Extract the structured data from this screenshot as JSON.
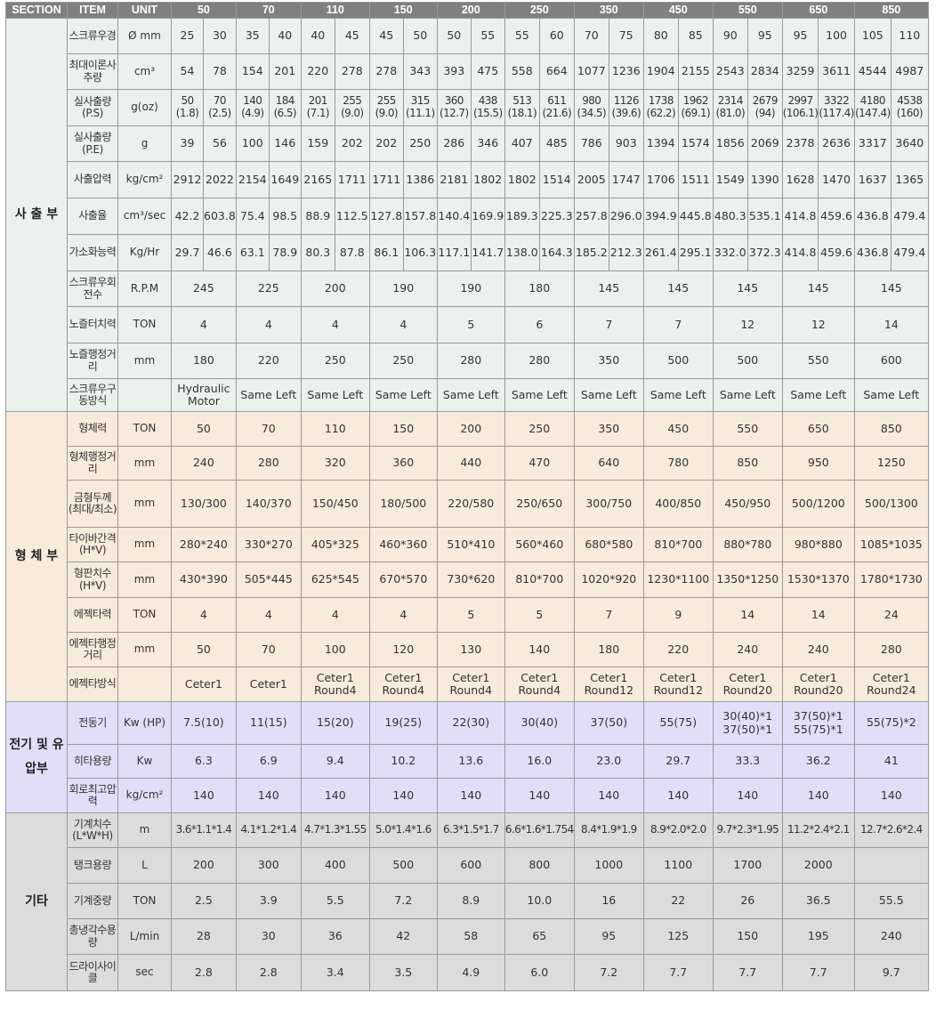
{
  "header": [
    "SECTION",
    "ITEM",
    "UNIT",
    "50",
    "70",
    "110",
    "150",
    "200",
    "250",
    "350",
    "450",
    "550",
    "650",
    "850"
  ],
  "sections": [
    {
      "name": "사 출 부",
      "rows": [
        {
          "item": "스크류우경",
          "unit": "Ø mm",
          "split": true,
          "values": [
            "25",
            "30",
            "35",
            "40",
            "40",
            "45",
            "45",
            "50",
            "50",
            "55",
            "55",
            "60",
            "70",
            "75",
            "80",
            "85",
            "90",
            "95",
            "95",
            "100",
            "105",
            "110"
          ]
        },
        {
          "item": "최대이론사추량",
          "unit": "cm³",
          "split": true,
          "values": [
            "54",
            "78",
            "154",
            "201",
            "220",
            "278",
            "278",
            "343",
            "393",
            "475",
            "558",
            "664",
            "1077",
            "1236",
            "1904",
            "2155",
            "2543",
            "2834",
            "3259",
            "3611",
            "4544",
            "4987"
          ]
        },
        {
          "item": "실사출량(P.S)",
          "unit": "g(oz)",
          "split": true,
          "small": true,
          "values": [
            "50 (1.8)",
            "70 (2.5)",
            "140 (4.9)",
            "184 (6.5)",
            "201 (7.1)",
            "255 (9.0)",
            "255 (9.0)",
            "315 (11.1)",
            "360 (12.7)",
            "438 (15.5)",
            "513 (18.1)",
            "611 (21.6)",
            "980 (34.5)",
            "1126 (39.6)",
            "1738 (62.2)",
            "1962 (69.1)",
            "2314 (81.0)",
            "2679 (94)",
            "2997 (106.1)",
            "3322 (117.4)",
            "4180 (147.4)",
            "4538 (160)"
          ]
        },
        {
          "item": "실사출량(P.E)",
          "unit": "g",
          "split": true,
          "values": [
            "39",
            "56",
            "100",
            "146",
            "159",
            "202",
            "202",
            "250",
            "286",
            "346",
            "407",
            "485",
            "786",
            "903",
            "1394",
            "1574",
            "1856",
            "2069",
            "2378",
            "2636",
            "3317",
            "3640"
          ]
        },
        {
          "item": "사출압력",
          "unit": "kg/cm²",
          "split": true,
          "values": [
            "2912",
            "2022",
            "2154",
            "1649",
            "2165",
            "1711",
            "1711",
            "1386",
            "2181",
            "1802",
            "1802",
            "1514",
            "2005",
            "1747",
            "1706",
            "1511",
            "1549",
            "1390",
            "1628",
            "1470",
            "1637",
            "1365"
          ]
        },
        {
          "item": "사출율",
          "unit": "cm³/sec",
          "split": true,
          "values": [
            "42.2",
            "603.8",
            "75.4",
            "98.5",
            "88.9",
            "112.5",
            "127.8",
            "157.8",
            "140.4",
            "169.9",
            "189.3",
            "225.3",
            "257.8",
            "296.0",
            "394.9",
            "445.8",
            "480.3",
            "535.1",
            "414.8",
            "459.6",
            "436.8",
            "479.4"
          ]
        },
        {
          "item": "가소화능력",
          "unit": "Kg/Hr",
          "split": true,
          "values": [
            "29.7",
            "46.6",
            "63.1",
            "78.9",
            "80.3",
            "87.8",
            "86.1",
            "106.3",
            "117.1",
            "141.7",
            "138.0",
            "164.3",
            "185.2",
            "212.3",
            "261.4",
            "295.1",
            "332.0",
            "372.3",
            "414.8",
            "459.6",
            "436.8",
            "479.4"
          ]
        },
        {
          "item": "스크류우회전수",
          "unit": "R.P.M",
          "values": [
            "245",
            "225",
            "200",
            "190",
            "190",
            "180",
            "145",
            "145",
            "145",
            "145",
            "145"
          ]
        },
        {
          "item": "노즐터치력",
          "unit": "TON",
          "values": [
            "4",
            "4",
            "4",
            "4",
            "5",
            "6",
            "7",
            "7",
            "12",
            "12",
            "14"
          ]
        },
        {
          "item": "노즐행정거리",
          "unit": "mm",
          "values": [
            "180",
            "220",
            "250",
            "250",
            "280",
            "280",
            "350",
            "500",
            "500",
            "550",
            "600"
          ]
        },
        {
          "item": "스크류우구동방식",
          "unit": "",
          "values": [
            "Hydraulic Motor",
            "Same Left",
            "Same Left",
            "Same Left",
            "Same Left",
            "Same Left",
            "Same Left",
            "Same Left",
            "Same Left",
            "Same Left",
            "Same Left"
          ]
        }
      ]
    },
    {
      "name": "형 체 부",
      "rows": [
        {
          "item": "형체력",
          "unit": "TON",
          "values": [
            "50",
            "70",
            "110",
            "150",
            "200",
            "250",
            "350",
            "450",
            "550",
            "650",
            "850"
          ]
        },
        {
          "item": "형체행정거리",
          "unit": "mm",
          "values": [
            "240",
            "280",
            "320",
            "360",
            "440",
            "470",
            "640",
            "780",
            "850",
            "950",
            "1250"
          ]
        },
        {
          "item": "금형두께(최대/최소)",
          "unit": "mm",
          "values": [
            "130/300",
            "140/370",
            "150/450",
            "180/500",
            "220/580",
            "250/650",
            "300/750",
            "400/850",
            "450/950",
            "500/1200",
            "500/1300"
          ]
        },
        {
          "item": "타이바간격(H*V)",
          "unit": "mm",
          "values": [
            "280*240",
            "330*270",
            "405*325",
            "460*360",
            "510*410",
            "560*460",
            "680*580",
            "810*700",
            "880*780",
            "980*880",
            "1085*1035"
          ]
        },
        {
          "item": "형판치수(H*V)",
          "unit": "mm",
          "values": [
            "430*390",
            "505*445",
            "625*545",
            "670*570",
            "730*620",
            "810*700",
            "1020*920",
            "1230*1100",
            "1350*1250",
            "1530*1370",
            "1780*1730"
          ]
        },
        {
          "item": "에젝타력",
          "unit": "TON",
          "values": [
            "4",
            "4",
            "4",
            "4",
            "5",
            "5",
            "7",
            "9",
            "14",
            "14",
            "24"
          ]
        },
        {
          "item": "에젝타행정거리",
          "unit": "mm",
          "values": [
            "50",
            "70",
            "100",
            "120",
            "130",
            "140",
            "180",
            "220",
            "240",
            "240",
            "280"
          ]
        },
        {
          "item": "에젝타방식",
          "unit": "",
          "values": [
            "Ceter1",
            "Ceter1",
            "Ceter1 Round4",
            "Ceter1 Round4",
            "Ceter1 Round4",
            "Ceter1 Round4",
            "Ceter1 Round12",
            "Ceter1 Round12",
            "Ceter1 Round20",
            "Ceter1 Round20",
            "Ceter1 Round24"
          ]
        }
      ]
    },
    {
      "name": "전기 및 유압부",
      "rows": [
        {
          "item": "전동기",
          "unit": "Kw (HP)",
          "values": [
            "7.5(10)",
            "11(15)",
            "15(20)",
            "19(25)",
            "22(30)",
            "30(40)",
            "37(50)",
            "55(75)",
            "30(40)*1 37(50)*1",
            "37(50)*1 55(75)*1",
            "55(75)*2"
          ]
        },
        {
          "item": "히타용량",
          "unit": "Kw",
          "values": [
            "6.3",
            "6.9",
            "9.4",
            "10.2",
            "13.6",
            "16.0",
            "23.0",
            "29.7",
            "33.3",
            "36.2",
            "41"
          ]
        },
        {
          "item": "회로최고압력",
          "unit": "kg/cm²",
          "values": [
            "140",
            "140",
            "140",
            "140",
            "140",
            "140",
            "140",
            "140",
            "140",
            "140",
            "140"
          ]
        }
      ]
    },
    {
      "name": "기타",
      "rows": [
        {
          "item": "기계치수(L*W*H)",
          "unit": "m",
          "small": true,
          "values": [
            "3.6*1.1*1.4",
            "4.1*1.2*1.4",
            "4.7*1.3*1.55",
            "5.0*1.4*1.6",
            "6.3*1.5*1.7",
            "6.6*1.6*1.754",
            "8.4*1.9*1.9",
            "8.9*2.0*2.0",
            "9.7*2.3*1.95",
            "11.2*2.4*2.1",
            "12.7*2.6*2.4"
          ]
        },
        {
          "item": "탱크용량",
          "unit": "L",
          "values": [
            "200",
            "300",
            "400",
            "500",
            "600",
            "800",
            "1000",
            "1100",
            "1700",
            "2000",
            ""
          ]
        },
        {
          "item": "기계중량",
          "unit": "TON",
          "values": [
            "2.5",
            "3.9",
            "5.5",
            "7.2",
            "8.9",
            "10.0",
            "16",
            "22",
            "26",
            "36.5",
            "55.5"
          ]
        },
        {
          "item": "총냉각수용량",
          "unit": "L/min",
          "values": [
            "28",
            "30",
            "36",
            "42",
            "58",
            "65",
            "95",
            "125",
            "150",
            "195",
            "240"
          ]
        },
        {
          "item": "드라이사이클",
          "unit": "sec",
          "values": [
            "2.8",
            "2.8",
            "3.4",
            "3.5",
            "4.9",
            "6.0",
            "7.2",
            "7.7",
            "7.7",
            "7.7",
            "9.7"
          ]
        }
      ]
    }
  ]
}
